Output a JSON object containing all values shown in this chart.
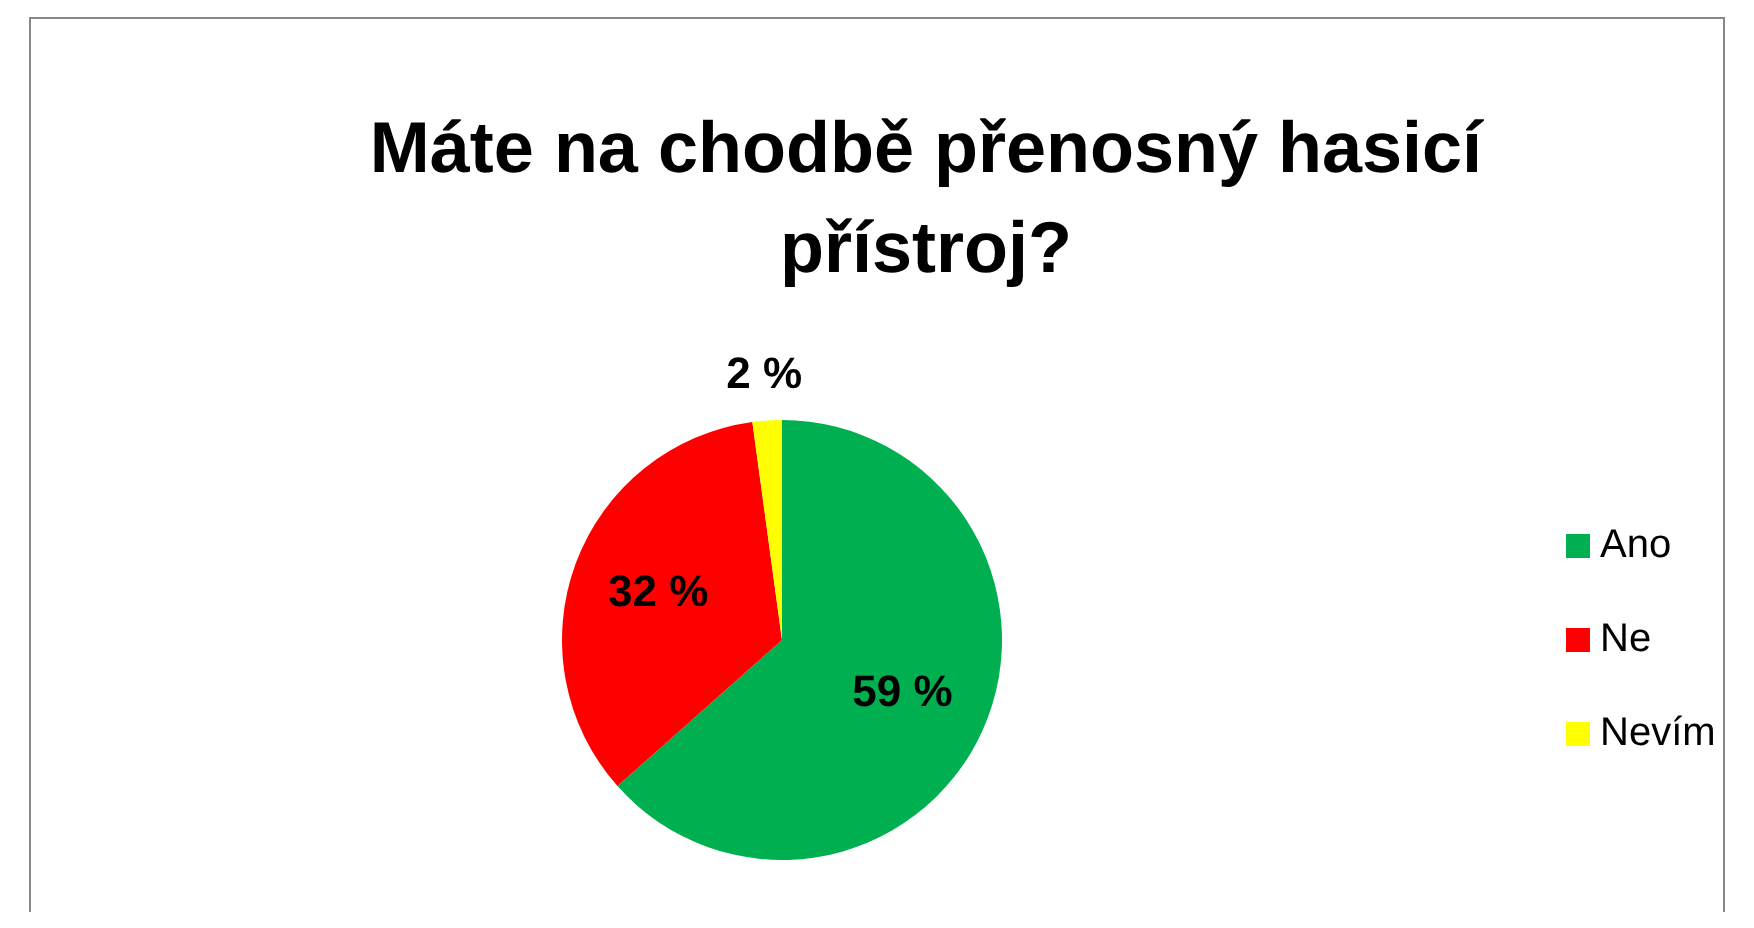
{
  "chart_data": {
    "type": "pie",
    "title": "Máte na chodbě přenosný hasicí přístroj?",
    "categories": [
      "Ano",
      "Ne",
      "Nevím"
    ],
    "values": [
      59,
      32,
      2
    ],
    "colors": [
      "#00b050",
      "#ff0000",
      "#ffff00"
    ],
    "value_labels": [
      "59 %",
      "32 %",
      "2 %"
    ],
    "legend": "right"
  }
}
